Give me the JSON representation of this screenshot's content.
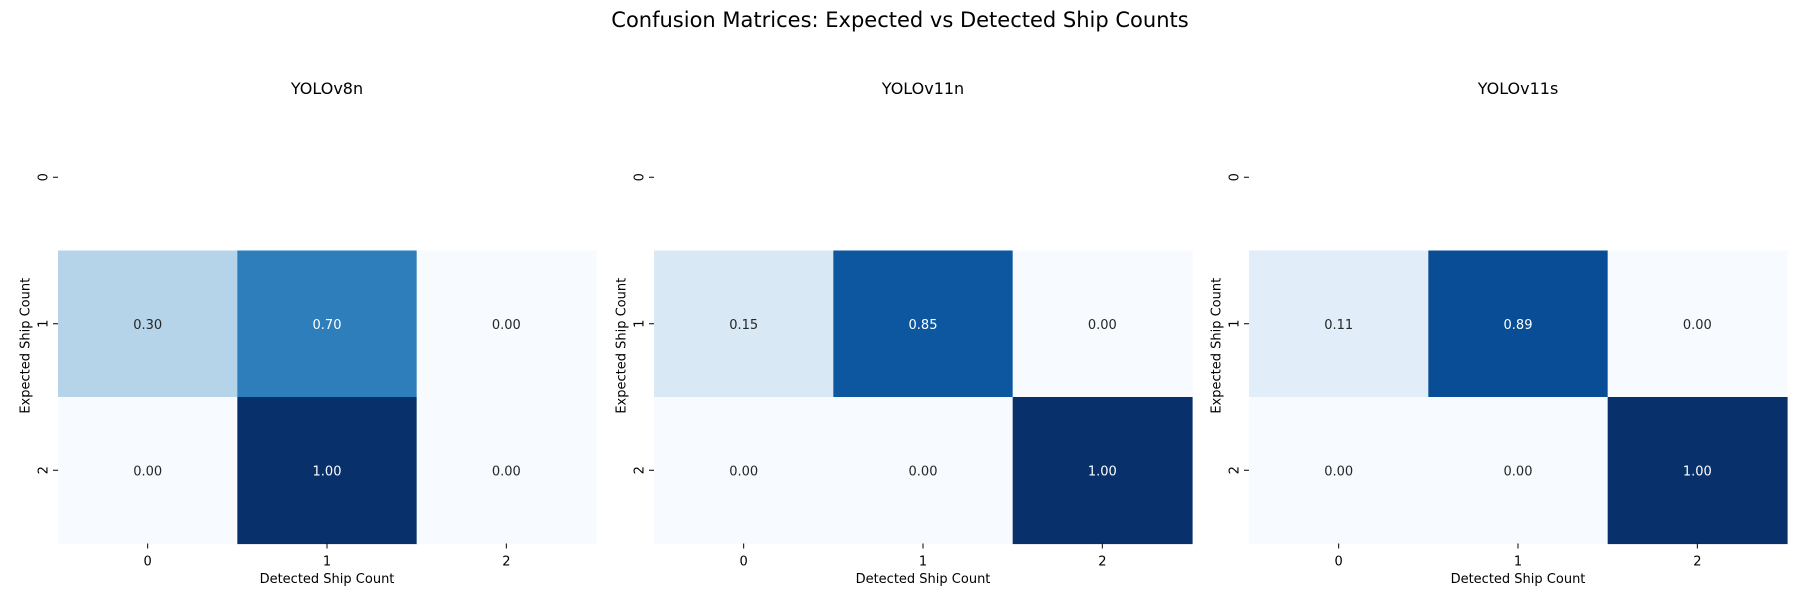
{
  "figure": {
    "title": "Confusion Matrices: Expected vs Detected Ship Counts"
  },
  "colors": {
    "cmap": [
      "#f7fbff",
      "#deebf7",
      "#c6dbef",
      "#9ecae1",
      "#6baed6",
      "#4292c6",
      "#2171b5",
      "#08519c",
      "#08306b"
    ],
    "text_dark": "#262626",
    "text_light": "#ffffff",
    "background": "#ffffff"
  },
  "chart_data": [
    {
      "type": "heatmap",
      "title": "YOLOv8n",
      "xlabel": "Detected Ship Count",
      "ylabel": "Expected Ship Count",
      "x_ticks": [
        "0",
        "1",
        "2"
      ],
      "y_ticks": [
        "0",
        "1",
        "2"
      ],
      "values": [
        [
          null,
          null,
          null
        ],
        [
          0.3,
          0.7,
          0.0
        ],
        [
          0.0,
          1.0,
          0.0
        ]
      ],
      "labels": [
        [
          "",
          "",
          ""
        ],
        [
          "0.30",
          "0.70",
          "0.00"
        ],
        [
          "0.00",
          "1.00",
          "0.00"
        ]
      ],
      "vmin": 0,
      "vmax": 1,
      "colorbar": false
    },
    {
      "type": "heatmap",
      "title": "YOLOv11n",
      "xlabel": "Detected Ship Count",
      "ylabel": "Expected Ship Count",
      "x_ticks": [
        "0",
        "1",
        "2"
      ],
      "y_ticks": [
        "0",
        "1",
        "2"
      ],
      "values": [
        [
          null,
          null,
          null
        ],
        [
          0.15,
          0.85,
          0.0
        ],
        [
          0.0,
          0.0,
          1.0
        ]
      ],
      "labels": [
        [
          "",
          "",
          ""
        ],
        [
          "0.15",
          "0.85",
          "0.00"
        ],
        [
          "0.00",
          "0.00",
          "1.00"
        ]
      ],
      "vmin": 0,
      "vmax": 1,
      "colorbar": false
    },
    {
      "type": "heatmap",
      "title": "YOLOv11s",
      "xlabel": "Detected Ship Count",
      "ylabel": "Expected Ship Count",
      "x_ticks": [
        "0",
        "1",
        "2"
      ],
      "y_ticks": [
        "0",
        "1",
        "2"
      ],
      "values": [
        [
          null,
          null,
          null
        ],
        [
          0.11,
          0.89,
          0.0
        ],
        [
          0.0,
          0.0,
          1.0
        ]
      ],
      "labels": [
        [
          "",
          "",
          ""
        ],
        [
          "0.11",
          "0.89",
          "0.00"
        ],
        [
          "0.00",
          "0.00",
          "1.00"
        ]
      ],
      "vmin": 0,
      "vmax": 1,
      "colorbar": false
    }
  ]
}
